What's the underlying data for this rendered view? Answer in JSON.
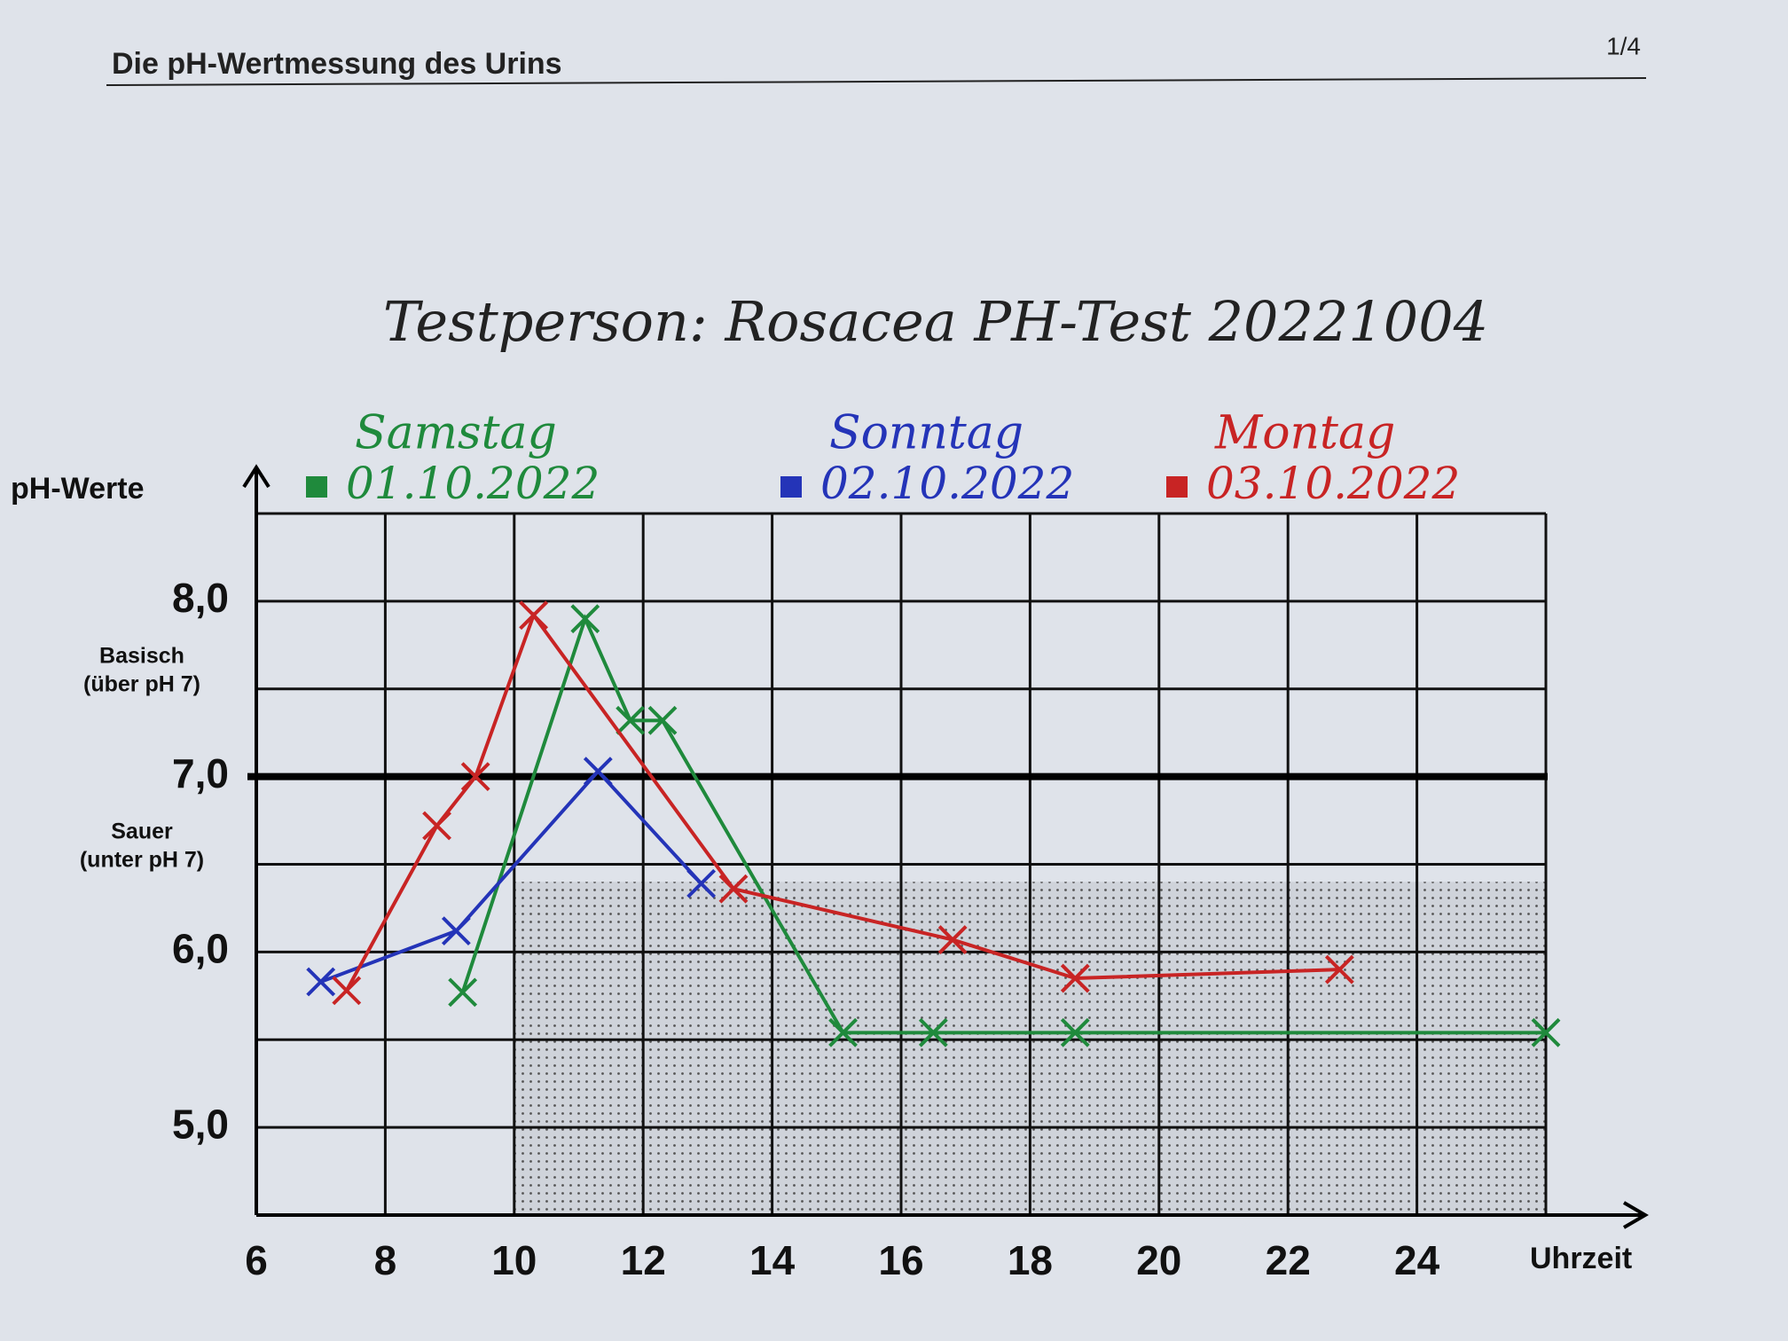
{
  "header": {
    "title": "Die pH-Wertmessung des Urins",
    "page": "1/4"
  },
  "chart_data": {
    "type": "line",
    "title": "Testperson:  Rosacea  PH-Test 20221004",
    "y_label": "pH-Werte",
    "x_label": "Uhrzeit",
    "annotations": {
      "above": [
        "Basisch",
        "(über pH 7)"
      ],
      "below": [
        "Sauer",
        "(unter pH 7)"
      ]
    },
    "xlim": [
      6,
      26
    ],
    "ylim": [
      4.5,
      8.5
    ],
    "xticks": [
      6,
      8,
      10,
      12,
      14,
      16,
      18,
      20,
      22,
      24
    ],
    "xgrid": [
      6,
      8,
      10,
      12,
      14,
      16,
      18,
      20,
      22,
      24,
      26
    ],
    "yticks": [
      {
        "value": 5,
        "label": "5,0"
      },
      {
        "value": 6,
        "label": "6,0"
      },
      {
        "value": 7,
        "label": "7,0"
      },
      {
        "value": 8,
        "label": "8,0"
      }
    ],
    "ygrid": [
      4.5,
      5,
      5.5,
      6,
      6.5,
      7,
      7.5,
      8,
      8.5
    ],
    "reference_line": 7,
    "shaded_area": {
      "xlim": [
        10,
        26
      ],
      "ylim": [
        4.5,
        6.4
      ]
    },
    "series": [
      {
        "name": "Samstag",
        "date": "01.10.2022",
        "color": "#1f8a3c",
        "x": [
          9.2,
          11.1,
          11.8,
          12.3,
          15.1,
          16.5,
          18.7,
          26
        ],
        "values": [
          5.77,
          7.9,
          7.32,
          7.32,
          5.54,
          5.54,
          5.54,
          5.54
        ]
      },
      {
        "name": "Sonntag",
        "date": "02.10.2022",
        "color": "#2434b8",
        "x": [
          7.0,
          9.1,
          11.3,
          12.9
        ],
        "values": [
          5.83,
          6.12,
          7.03,
          6.39
        ]
      },
      {
        "name": "Montag",
        "date": "03.10.2022",
        "color": "#c82424",
        "x": [
          7.4,
          8.8,
          9.4,
          10.3,
          13.4,
          16.8,
          18.7,
          22.8
        ],
        "values": [
          5.78,
          6.72,
          7.0,
          7.92,
          6.36,
          6.07,
          5.85,
          5.9
        ]
      }
    ]
  }
}
